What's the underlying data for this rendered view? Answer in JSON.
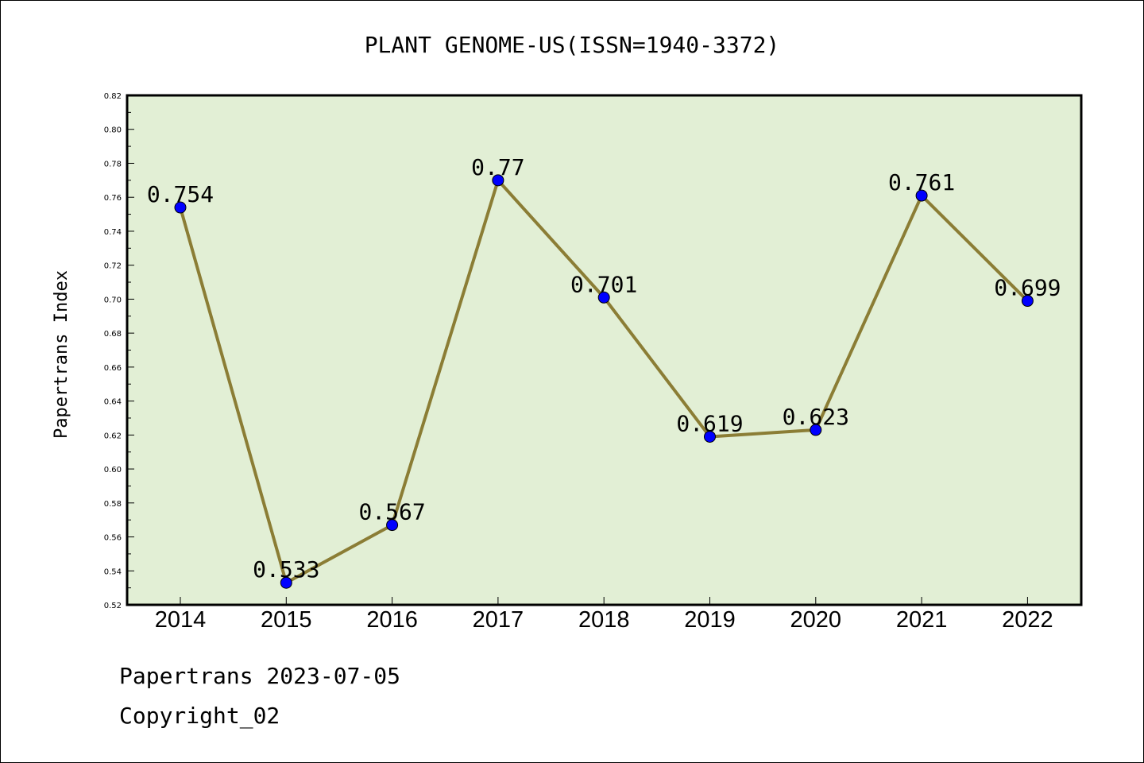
{
  "chart_data": {
    "type": "line",
    "title": "PLANT GENOME-US(ISSN=1940-3372)",
    "ylabel": "Papertrans Index",
    "xlabel": "",
    "categories": [
      "2014",
      "2015",
      "2016",
      "2017",
      "2018",
      "2019",
      "2020",
      "2021",
      "2022"
    ],
    "series": [
      {
        "values": [
          0.754,
          0.533,
          0.567,
          0.77,
          0.701,
          0.619,
          0.623,
          0.761,
          0.699
        ]
      }
    ],
    "data_labels": [
      "0.754",
      "0.533",
      "0.567",
      "0.77",
      "0.701",
      "0.619",
      "0.623",
      "0.761",
      "0.699"
    ],
    "ylim": [
      0.52,
      0.82
    ],
    "yticks": [
      "0.52",
      "0.54",
      "0.56",
      "0.58",
      "0.60",
      "0.62",
      "0.64",
      "0.66",
      "0.68",
      "0.70",
      "0.72",
      "0.74",
      "0.76",
      "0.78",
      "0.80",
      "0.82"
    ],
    "grid": false,
    "colors": {
      "plot_bg": "#e2efd5",
      "line": "#8b7d35",
      "marker": "#0000ff"
    }
  },
  "footer": {
    "line1": "Papertrans 2023-07-05",
    "line2": "Copyright_02"
  }
}
